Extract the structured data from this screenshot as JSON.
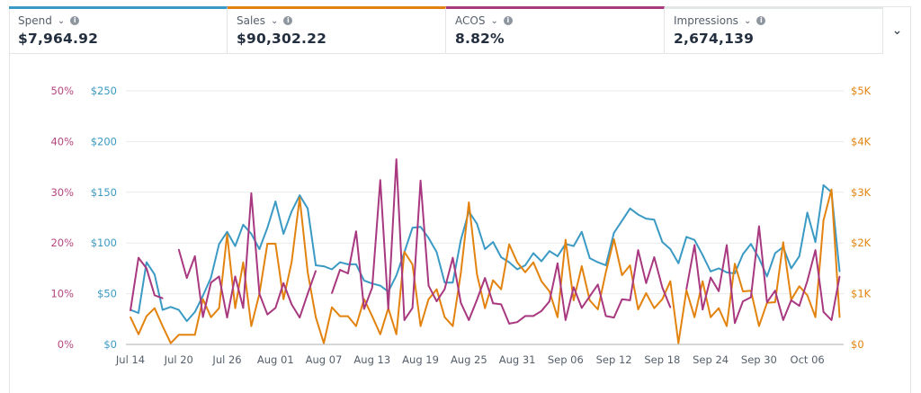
{
  "metrics": [
    {
      "label": "Spend",
      "value": "$7,964.92",
      "color": "#3b9ac4"
    },
    {
      "label": "Sales",
      "value": "$90,302.22",
      "color": "#e3830f"
    },
    {
      "label": "ACOS",
      "value": "8.82%",
      "color": "#a8387f"
    },
    {
      "label": "Impressions",
      "value": "2,674,139",
      "color": "#e3e6e6"
    }
  ],
  "icons": {
    "dropdown": "chevron-down-icon",
    "info": "info-icon",
    "more": "chevron-down-icon"
  },
  "chart_data": {
    "type": "line",
    "x_ticks": [
      "Jul 14",
      "Jul 20",
      "Jul 26",
      "Aug 01",
      "Aug 07",
      "Aug 13",
      "Aug 19",
      "Aug 25",
      "Aug 31",
      "Sep 06",
      "Sep 12",
      "Sep 18",
      "Sep 24",
      "Sep 30",
      "Oct 06"
    ],
    "left_axis_acos": {
      "ticks": [
        "0%",
        "10%",
        "20%",
        "30%",
        "40%",
        "50%"
      ],
      "range": [
        0,
        50
      ],
      "color": "#b5477f"
    },
    "left_axis_spend": {
      "ticks": [
        "$0",
        "$50",
        "$100",
        "$150",
        "$200",
        "$250"
      ],
      "range": [
        0,
        250
      ],
      "color": "#3b9ac4"
    },
    "right_axis_sales": {
      "ticks": [
        "$0",
        "$1K",
        "$2K",
        "$3K",
        "$4K",
        "$5K"
      ],
      "range": [
        0,
        5000
      ],
      "color": "#e3830f"
    },
    "grid": true,
    "dates": [
      "Jul 14",
      "Jul 15",
      "Jul 16",
      "Jul 17",
      "Jul 18",
      "Jul 19",
      "Jul 20",
      "Jul 21",
      "Jul 22",
      "Jul 23",
      "Jul 24",
      "Jul 25",
      "Jul 26",
      "Jul 27",
      "Jul 28",
      "Jul 29",
      "Jul 30",
      "Jul 31",
      "Aug 01",
      "Aug 02",
      "Aug 03",
      "Aug 04",
      "Aug 05",
      "Aug 06",
      "Aug 07",
      "Aug 08",
      "Aug 09",
      "Aug 10",
      "Aug 11",
      "Aug 12",
      "Aug 13",
      "Aug 14",
      "Aug 15",
      "Aug 16",
      "Aug 17",
      "Aug 18",
      "Aug 19",
      "Aug 20",
      "Aug 21",
      "Aug 22",
      "Aug 23",
      "Aug 24",
      "Aug 25",
      "Aug 26",
      "Aug 27",
      "Aug 28",
      "Aug 29",
      "Aug 30",
      "Aug 31",
      "Sep 01",
      "Sep 02",
      "Sep 03",
      "Sep 04",
      "Sep 05",
      "Sep 06",
      "Sep 07",
      "Sep 08",
      "Sep 09",
      "Sep 10",
      "Sep 11",
      "Sep 12",
      "Sep 13",
      "Sep 14",
      "Sep 15",
      "Sep 16",
      "Sep 17",
      "Sep 18",
      "Sep 19",
      "Sep 20",
      "Sep 21",
      "Sep 22",
      "Sep 23",
      "Sep 24",
      "Sep 25",
      "Sep 26",
      "Sep 27",
      "Sep 28",
      "Sep 29",
      "Sep 30",
      "Oct 01",
      "Oct 02",
      "Oct 03",
      "Oct 04",
      "Oct 05",
      "Oct 06",
      "Oct 07",
      "Oct 08",
      "Oct 09",
      "Oct 10"
    ],
    "series": [
      {
        "name": "Spend",
        "axis": "spend",
        "color": "#3b9ac4",
        "values": [
          34,
          31,
          81,
          69,
          34,
          37,
          34,
          23,
          32,
          48,
          66,
          99,
          111,
          97,
          118,
          109,
          94,
          115,
          141,
          109,
          131,
          147,
          134,
          78,
          77,
          74,
          81,
          79,
          79,
          63,
          60,
          58,
          52,
          68,
          91,
          115,
          116,
          105,
          91,
          61,
          61,
          103,
          131,
          119,
          94,
          101,
          86,
          81,
          74,
          78,
          90,
          82,
          92,
          87,
          99,
          97,
          111,
          85,
          81,
          78,
          110,
          122,
          134,
          128,
          124,
          123,
          101,
          94,
          80,
          106,
          103,
          88,
          72,
          75,
          71,
          70,
          89,
          99,
          85,
          67,
          90,
          96,
          75,
          87,
          130,
          101,
          157,
          150,
          72
        ]
      },
      {
        "name": "Sales",
        "axis": "sales",
        "color": "#e3830f",
        "values": [
          538,
          201,
          556,
          715,
          361,
          24,
          189,
          189,
          189,
          892,
          538,
          715,
          2169,
          715,
          1619,
          361,
          999,
          1986,
          1986,
          892,
          1619,
          2890,
          1424,
          538,
          24,
          733,
          556,
          556,
          361,
          892,
          556,
          201,
          715,
          201,
          1826,
          1578,
          361,
          892,
          1087,
          538,
          361,
          1412,
          2801,
          1383,
          715,
          1265,
          1087,
          1974,
          1619,
          1424,
          1619,
          1247,
          1046,
          538,
          2063,
          869,
          1543,
          869,
          691,
          1424,
          2074,
          1365,
          1560,
          691,
          1011,
          715,
          892,
          1247,
          24,
          1070,
          538,
          1247,
          538,
          715,
          361,
          1590,
          1046,
          1058,
          361,
          821,
          833,
          2015,
          881,
          1147,
          969,
          538,
          2447,
          3055,
          538
        ]
      },
      {
        "name": "ACOS",
        "axis": "acos",
        "color": "#a8387f",
        "values": [
          6.7,
          17.1,
          15.0,
          9.7,
          9.1,
          null,
          18.7,
          13.1,
          17.4,
          5.4,
          12.2,
          13.4,
          5.3,
          13.4,
          7.2,
          29.8,
          10.0,
          5.9,
          7.2,
          12.1,
          7.9,
          5.3,
          10.0,
          14.5,
          null,
          10.1,
          14.7,
          14.0,
          22.3,
          7.0,
          11.2,
          32.4,
          7.0,
          36.5,
          4.8,
          7.2,
          32.3,
          11.6,
          8.5,
          10.9,
          17.1,
          8.2,
          4.8,
          8.8,
          13.1,
          8.1,
          7.9,
          4.1,
          4.4,
          5.6,
          5.6,
          6.6,
          8.5,
          16.0,
          4.8,
          11.3,
          7.2,
          9.5,
          11.8,
          5.6,
          5.3,
          8.9,
          8.7,
          18.6,
          12.1,
          17.2,
          11.2,
          7.3,
          null,
          10.9,
          19.6,
          6.9,
          13.2,
          10.5,
          19.6,
          4.2,
          8.5,
          9.3,
          23.3,
          8.3,
          10.6,
          4.8,
          8.7,
          7.6,
          12.5,
          18.6,
          6.4,
          4.8,
          13.4
        ]
      }
    ]
  }
}
